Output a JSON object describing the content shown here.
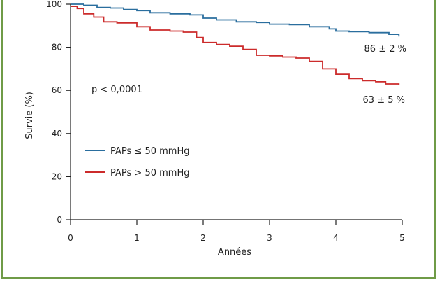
{
  "chart_data": {
    "type": "line",
    "xlabel": "Années",
    "ylabel": "Survie (%)",
    "xlim": [
      0,
      5
    ],
    "ylim": [
      0,
      100
    ],
    "x_ticks": [
      0,
      1,
      2,
      3,
      4,
      5
    ],
    "y_ticks": [
      0,
      20,
      40,
      60,
      80,
      100
    ],
    "x_tick_labels": [
      "0",
      "1",
      "2",
      "3",
      "4",
      "5"
    ],
    "y_tick_labels": [
      "0",
      "20",
      "40",
      "60",
      "80",
      "100"
    ],
    "grid": false,
    "legend_position": "lower-left",
    "annotation": "p < 0,0001",
    "series": [
      {
        "name": "PAPs ≤ 50 mmHg",
        "color": "#2a6e9e",
        "end_label": "86 ± 2 %",
        "points": [
          [
            0,
            100
          ],
          [
            0.2,
            99.5
          ],
          [
            0.4,
            98.5
          ],
          [
            0.6,
            98.2
          ],
          [
            0.8,
            97.5
          ],
          [
            1.0,
            97
          ],
          [
            1.2,
            96
          ],
          [
            1.5,
            95.5
          ],
          [
            1.8,
            95
          ],
          [
            2.0,
            93.5
          ],
          [
            2.2,
            92.7
          ],
          [
            2.5,
            91.8
          ],
          [
            2.8,
            91.5
          ],
          [
            3.0,
            90.7
          ],
          [
            3.3,
            90.5
          ],
          [
            3.6,
            89.5
          ],
          [
            3.9,
            88.5
          ],
          [
            4.0,
            87.5
          ],
          [
            4.2,
            87.2
          ],
          [
            4.5,
            86.8
          ],
          [
            4.8,
            86
          ],
          [
            4.95,
            85
          ]
        ]
      },
      {
        "name": "PAPs > 50 mmHg",
        "color": "#cc2b2b",
        "end_label": "63 ± 5 %",
        "points": [
          [
            0,
            99
          ],
          [
            0.1,
            98
          ],
          [
            0.2,
            95.5
          ],
          [
            0.35,
            94
          ],
          [
            0.5,
            91.8
          ],
          [
            0.7,
            91.3
          ],
          [
            0.9,
            91.3
          ],
          [
            1.0,
            89.5
          ],
          [
            1.2,
            88
          ],
          [
            1.5,
            87.5
          ],
          [
            1.7,
            87
          ],
          [
            1.9,
            84.5
          ],
          [
            2.0,
            82.2
          ],
          [
            2.2,
            81.3
          ],
          [
            2.4,
            80.5
          ],
          [
            2.6,
            79
          ],
          [
            2.8,
            76.3
          ],
          [
            3.0,
            76
          ],
          [
            3.2,
            75.5
          ],
          [
            3.4,
            75
          ],
          [
            3.6,
            73.5
          ],
          [
            3.8,
            70
          ],
          [
            4.0,
            67.5
          ],
          [
            4.2,
            65.5
          ],
          [
            4.4,
            64.5
          ],
          [
            4.6,
            64
          ],
          [
            4.75,
            63
          ],
          [
            4.95,
            62.5
          ]
        ]
      }
    ]
  }
}
